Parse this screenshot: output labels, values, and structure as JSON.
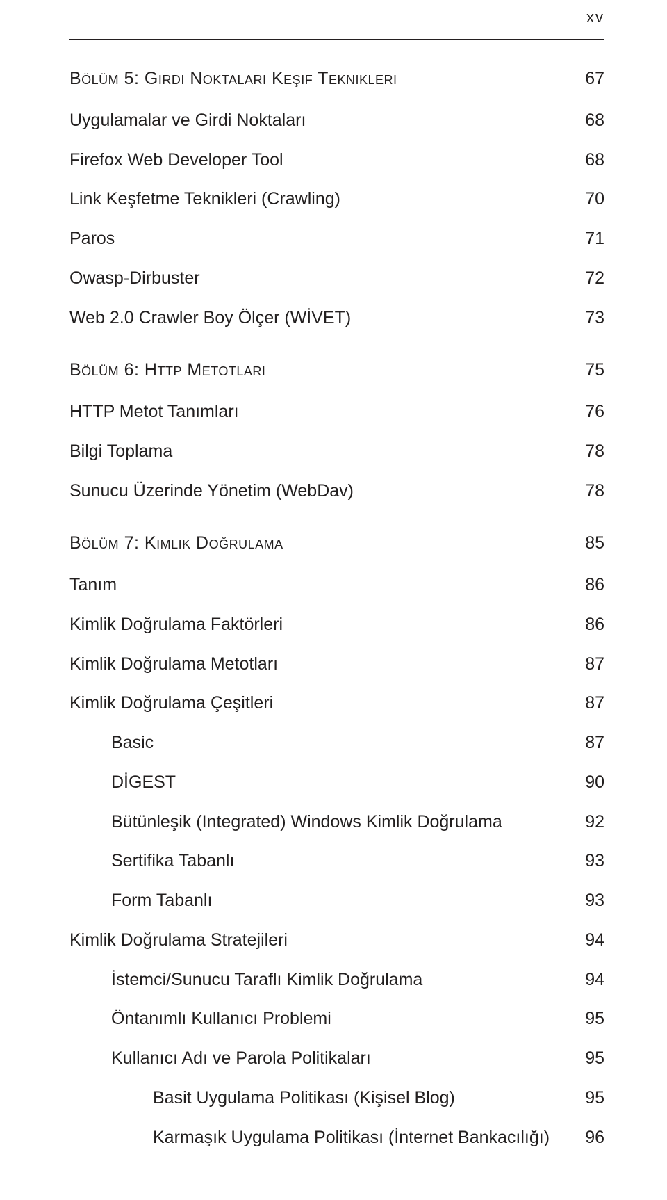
{
  "page_folio": "xv",
  "colors": {
    "text": "#221f1f",
    "rule": "#241f20",
    "background": "#ffffff"
  },
  "typography": {
    "body_fontsize": 25,
    "folio_fontsize": 22,
    "chapter_fontvariant": "small-caps"
  },
  "toc": [
    {
      "type": "chapter",
      "first": true,
      "label": "Bölüm 5: Girdi Noktaları Keşif Teknikleri",
      "page": "67"
    },
    {
      "type": "entry",
      "indent": 0,
      "label": "Uygulamalar ve Girdi Noktaları",
      "page": "68"
    },
    {
      "type": "entry",
      "indent": 0,
      "label": "Firefox Web Developer Tool",
      "page": "68"
    },
    {
      "type": "entry",
      "indent": 0,
      "label": "Link Keşfetme Teknikleri (Crawling)",
      "page": "70"
    },
    {
      "type": "entry",
      "indent": 0,
      "label": "Paros",
      "page": "71"
    },
    {
      "type": "entry",
      "indent": 0,
      "label": "Owasp-Dirbuster",
      "page": "72"
    },
    {
      "type": "entry",
      "indent": 0,
      "label": "Web 2.0 Crawler Boy Ölçer (WİVET)",
      "page": "73"
    },
    {
      "type": "chapter",
      "label": "Bölüm 6: Http Metotları",
      "page": "75"
    },
    {
      "type": "entry",
      "indent": 0,
      "label": "HTTP Metot Tanımları",
      "page": "76"
    },
    {
      "type": "entry",
      "indent": 0,
      "label": "Bilgi Toplama",
      "page": "78"
    },
    {
      "type": "entry",
      "indent": 0,
      "label": "Sunucu Üzerinde Yönetim (WebDav)",
      "page": "78"
    },
    {
      "type": "chapter",
      "label": "Bölüm 7: Kimlik Doğrulama",
      "page": "85"
    },
    {
      "type": "entry",
      "indent": 0,
      "label": "Tanım",
      "page": "86"
    },
    {
      "type": "entry",
      "indent": 0,
      "label": "Kimlik Doğrulama Faktörleri",
      "page": "86"
    },
    {
      "type": "entry",
      "indent": 0,
      "label": "Kimlik Doğrulama Metotları",
      "page": "87"
    },
    {
      "type": "entry",
      "indent": 0,
      "label": "Kimlik Doğrulama Çeşitleri",
      "page": "87"
    },
    {
      "type": "entry",
      "indent": 1,
      "label": "Basic",
      "page": "87"
    },
    {
      "type": "entry",
      "indent": 1,
      "label": "DİGEST",
      "page": "90"
    },
    {
      "type": "entry",
      "indent": 1,
      "label": "Bütünleşik (Integrated) Windows Kimlik Doğrulama",
      "page": "92"
    },
    {
      "type": "entry",
      "indent": 1,
      "label": "Sertifika Tabanlı",
      "page": "93"
    },
    {
      "type": "entry",
      "indent": 1,
      "label": "Form Tabanlı",
      "page": "93"
    },
    {
      "type": "entry",
      "indent": 0,
      "label": "Kimlik Doğrulama Stratejileri",
      "page": "94"
    },
    {
      "type": "entry",
      "indent": 1,
      "label": "İstemci/Sunucu Taraflı Kimlik Doğrulama",
      "page": "94"
    },
    {
      "type": "entry",
      "indent": 1,
      "label": "Öntanımlı Kullanıcı Problemi",
      "page": "95"
    },
    {
      "type": "entry",
      "indent": 1,
      "label": "Kullanıcı Adı ve Parola Politikaları",
      "page": "95"
    },
    {
      "type": "entry",
      "indent": 2,
      "label": "Basit Uygulama Politikası (Kişisel Blog)",
      "page": "95"
    },
    {
      "type": "entry",
      "indent": 2,
      "label": "Karmaşık Uygulama Politikası (İnternet Bankacılığı)",
      "page": "96"
    }
  ]
}
